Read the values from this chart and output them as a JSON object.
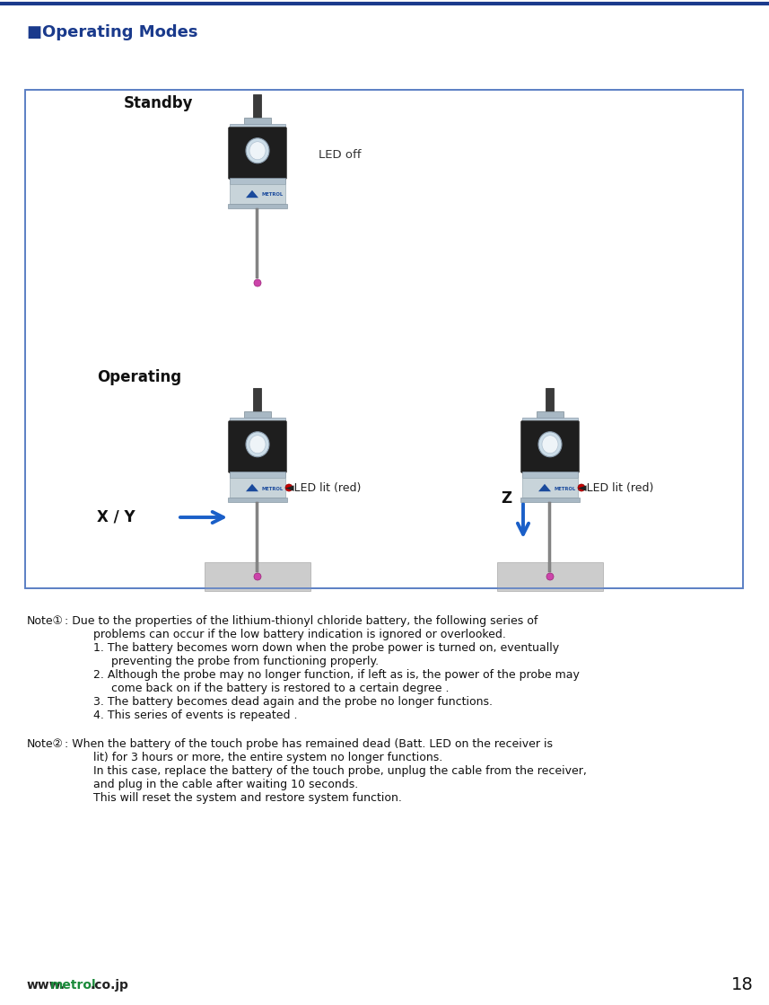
{
  "title_text": "■Operating Modes",
  "title_color": "#1a3a8c",
  "title_fontsize": 13,
  "box_border_color": "#5b7fc4",
  "standby_label": "Standby",
  "operating_label": "Operating",
  "led_off_text": "LED off",
  "led_lit_text": "◄LED lit (red)",
  "xy_label": "X / Y",
  "z_label": "Z",
  "arrow_color": "#1a5fc8",
  "red_color": "#cc0000",
  "pink_color": "#cc44aa",
  "note1_title": "Note①",
  "note1_colon": " : Due to the properties of the lithium-thionyl chloride battery, the following series of\n         problems can occur if the low battery indication is ignored or overlooked.\n         1. The battery becomes worn down when the probe power is turned on, eventually\n              preventing the probe from functioning properly.\n         2. Although the probe may no longer function, if left as is, the power of the probe may\n              come back on if the battery is restored to a certain degree .\n         3. The battery becomes dead again and the probe no longer functions.\n         4. This series of events is repeated .",
  "note2_title": "Note②",
  "note2_colon": " : When the battery of the touch probe has remained dead (Batt. LED on the receiver is\n         lit) for 3 hours or more, the entire system no longer functions.\n         In this case, replace the battery of the touch probe, unplug the cable from the receiver,\n         and plug in the cable after waiting 10 seconds.\n         This will reset the system and restore system function.",
  "footer_www": "www.",
  "footer_metrol": "metrol",
  "footer_cojp": ".co.jp",
  "footer_color_normal": "#222222",
  "footer_color_metrol": "#1a8a3a",
  "page_number": "18",
  "bg_color": "#ffffff",
  "top_line_color": "#1a3a8c"
}
